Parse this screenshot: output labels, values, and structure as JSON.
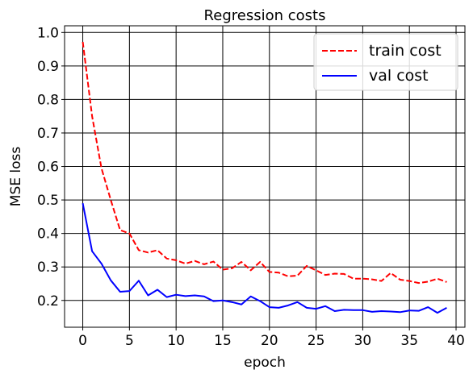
{
  "chart_data": {
    "type": "line",
    "title": "Regression costs",
    "xlabel": "epoch",
    "ylabel": "MSE loss",
    "xlim": [
      -1.95,
      40.95
    ],
    "ylim": [
      0.12,
      1.02
    ],
    "xticks": [
      0,
      5,
      10,
      15,
      20,
      25,
      30,
      35,
      40
    ],
    "yticks": [
      0.2,
      0.3,
      0.4,
      0.5,
      0.6,
      0.7,
      0.8,
      0.9,
      1.0
    ],
    "xtick_labels": [
      "0",
      "5",
      "10",
      "15",
      "20",
      "25",
      "30",
      "35",
      "40"
    ],
    "ytick_labels": [
      "0.2",
      "0.3",
      "0.4",
      "0.5",
      "0.6",
      "0.7",
      "0.8",
      "0.9",
      "1.0"
    ],
    "grid": true,
    "legend_position": "top-right",
    "x": [
      0,
      1,
      2,
      3,
      4,
      5,
      6,
      7,
      8,
      9,
      10,
      11,
      12,
      13,
      14,
      15,
      16,
      17,
      18,
      19,
      20,
      21,
      22,
      23,
      24,
      25,
      26,
      27,
      28,
      29,
      30,
      31,
      32,
      33,
      34,
      35,
      36,
      37,
      38,
      39
    ],
    "series": [
      {
        "name": "train cost",
        "color": "#ff0000",
        "style": "dashed",
        "values": [
          0.972,
          0.75,
          0.595,
          0.5,
          0.41,
          0.4,
          0.35,
          0.343,
          0.35,
          0.325,
          0.32,
          0.31,
          0.318,
          0.308,
          0.316,
          0.292,
          0.296,
          0.315,
          0.29,
          0.315,
          0.285,
          0.283,
          0.272,
          0.274,
          0.303,
          0.29,
          0.276,
          0.28,
          0.279,
          0.265,
          0.265,
          0.263,
          0.258,
          0.282,
          0.262,
          0.258,
          0.252,
          0.256,
          0.265,
          0.255
        ]
      },
      {
        "name": "val cost",
        "color": "#0000ff",
        "style": "solid",
        "values": [
          0.49,
          0.347,
          0.31,
          0.26,
          0.226,
          0.228,
          0.259,
          0.215,
          0.232,
          0.21,
          0.217,
          0.213,
          0.215,
          0.212,
          0.198,
          0.2,
          0.195,
          0.188,
          0.212,
          0.198,
          0.18,
          0.178,
          0.185,
          0.195,
          0.178,
          0.175,
          0.183,
          0.168,
          0.172,
          0.171,
          0.171,
          0.166,
          0.168,
          0.167,
          0.165,
          0.17,
          0.169,
          0.18,
          0.163,
          0.178
        ]
      }
    ]
  }
}
